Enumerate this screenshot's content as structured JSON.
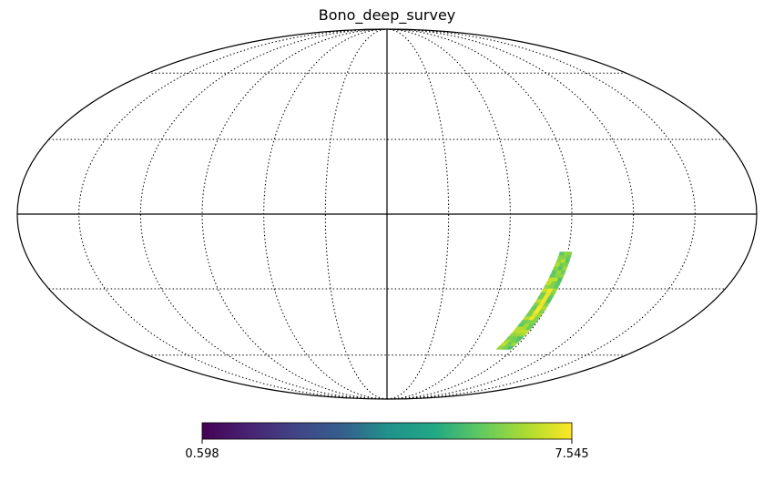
{
  "chart_data": {
    "type": "heatmap",
    "projection": "mollweide",
    "title": "Bono_deep_survey",
    "graticule": "dotted",
    "colormap": "viridis",
    "colorbar": {
      "min_label": "0.598",
      "max_label": "7.545",
      "range": [
        0.598,
        7.545
      ],
      "placement": "bottom"
    },
    "coverage_region": {
      "description_values": "narrow strip in southern hemisphere",
      "lon_range": [
        -80,
        -90
      ],
      "lat_range": [
        -15,
        -57
      ],
      "typical_value": 6.3,
      "max_value": 7.545
    }
  }
}
